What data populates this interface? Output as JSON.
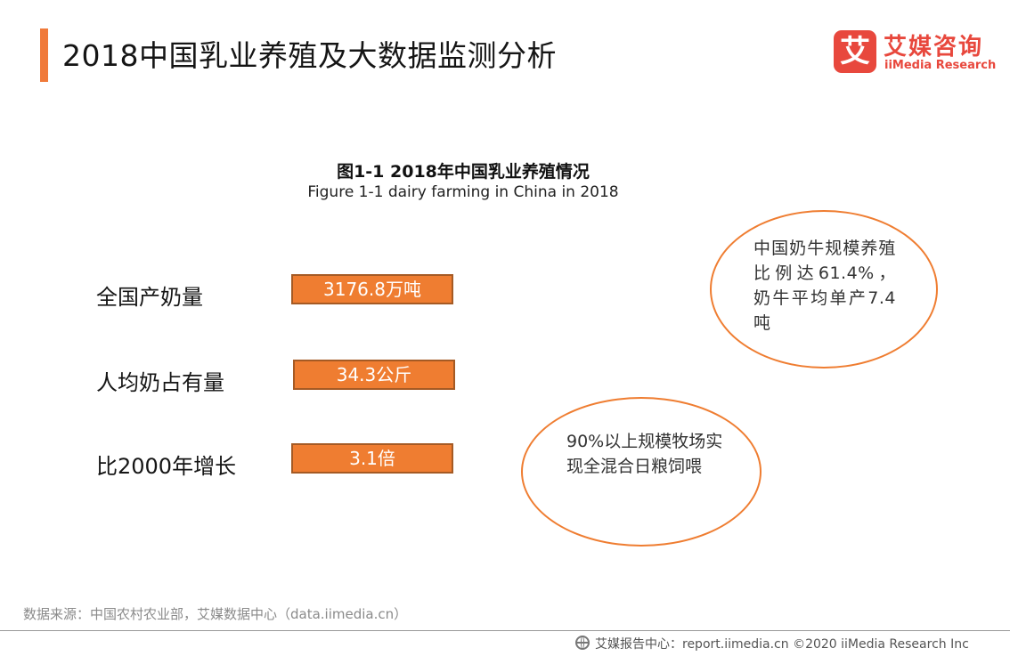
{
  "header": {
    "title": "2018中国乳业养殖及大数据监测分析"
  },
  "logo": {
    "mark": "艾",
    "name_cn": "艾媒咨询",
    "name_en": "iiMedia Research",
    "brand_color": "#e8483d"
  },
  "figure": {
    "title_cn": "图1-1 2018年中国乳业养殖情况",
    "title_en": "Figure 1-1 dairy farming in China in 2018"
  },
  "stats": [
    {
      "label": "全国产奶量",
      "value": "3176.8万吨"
    },
    {
      "label": "人均奶占有量",
      "value": "34.3公斤"
    },
    {
      "label": "比2000年增长",
      "value": "3.1倍"
    }
  ],
  "callouts": [
    {
      "text": "中国奶牛规模养殖比例达61.4%，奶牛平均单产7.4吨"
    },
    {
      "text": "90%以上规模牧场实现全混合日粮饲喂"
    }
  ],
  "source": "数据来源：中国农村农业部，艾媒数据中心（data.iimedia.cn）",
  "footer": {
    "icon": "globe-icon",
    "text": "艾媒报告中心：report.iimedia.cn  ©2020  iiMedia Research  Inc"
  },
  "colors": {
    "accent": "#f07a3a",
    "value_box": "#ef7d31",
    "value_box_border": "#a55a24",
    "callout_border": "#ef7d31"
  }
}
